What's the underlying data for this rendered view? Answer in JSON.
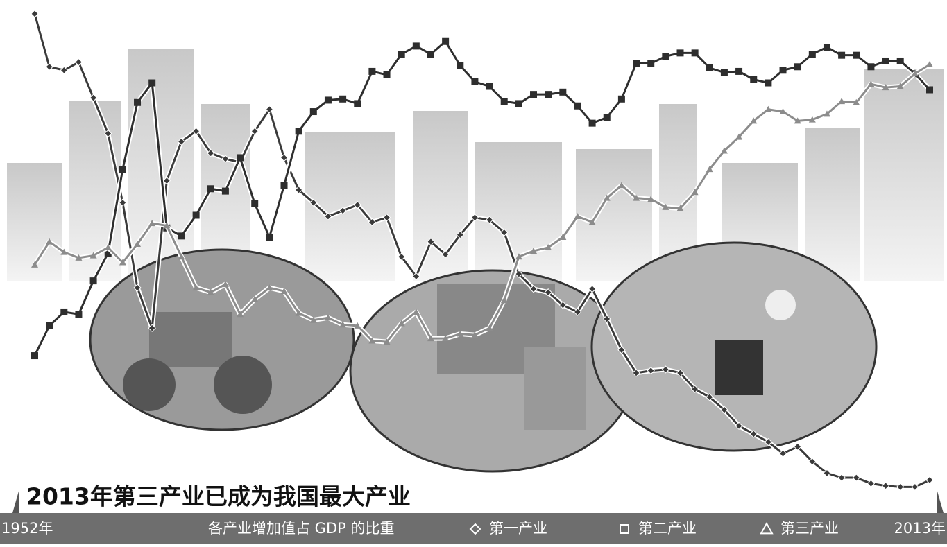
{
  "chart_data": {
    "type": "line",
    "title": "2013年第三产业已成为我国最大产业",
    "subtitle": "各产业增加值占 GDP 的比重",
    "categories": [
      "1952年",
      null,
      null,
      null,
      null,
      null,
      null,
      null,
      null,
      null,
      null,
      null,
      null,
      null,
      null,
      null,
      null,
      null,
      null,
      null,
      null,
      null,
      null,
      null,
      null,
      null,
      null,
      null,
      null,
      null,
      null,
      null,
      null,
      null,
      null,
      null,
      null,
      null,
      null,
      null,
      null,
      null,
      null,
      null,
      null,
      null,
      null,
      null,
      null,
      null,
      null,
      null,
      null,
      null,
      null,
      null,
      null,
      null,
      null,
      null,
      null,
      "2013年"
    ],
    "ylim": [
      4,
      52
    ],
    "series": [
      {
        "name": "第一产业",
        "color": "#3a3a3a",
        "marker": "diamond",
        "values": [
          50.5,
          45.9,
          45.6,
          46.3,
          43.2,
          40.1,
          34.1,
          26.7,
          23.2,
          36.0,
          39.4,
          40.3,
          38.4,
          37.9,
          37.6,
          40.3,
          42.2,
          38.0,
          35.2,
          34.1,
          32.9,
          33.4,
          33.9,
          32.4,
          32.8,
          29.4,
          27.7,
          30.7,
          29.6,
          31.3,
          32.8,
          32.6,
          31.5,
          27.9,
          26.6,
          26.3,
          25.2,
          24.6,
          26.6,
          24.0,
          21.3,
          19.3,
          19.5,
          19.6,
          19.3,
          17.9,
          17.2,
          16.1,
          14.7,
          14.0,
          13.3,
          12.3,
          12.9,
          11.6,
          10.6,
          10.2,
          10.2,
          9.7,
          9.5,
          9.4,
          9.4,
          10.0
        ]
      },
      {
        "name": "第二产业",
        "color": "#2e2e2e",
        "marker": "square",
        "values": [
          20.8,
          23.4,
          24.6,
          24.4,
          27.3,
          29.7,
          37.0,
          42.8,
          44.5,
          31.9,
          31.2,
          33.0,
          35.3,
          35.1,
          38.0,
          34.0,
          31.1,
          35.6,
          40.3,
          42.0,
          43.0,
          43.1,
          42.7,
          45.5,
          45.2,
          47.0,
          47.7,
          47.0,
          48.1,
          46.0,
          44.6,
          44.2,
          42.9,
          42.7,
          43.5,
          43.5,
          43.7,
          42.5,
          41.0,
          41.5,
          43.1,
          46.2,
          46.2,
          46.8,
          47.1,
          47.1,
          45.8,
          45.4,
          45.5,
          44.8,
          44.5,
          45.6,
          45.9,
          47.0,
          47.6,
          46.9,
          46.9,
          45.9,
          46.4,
          46.4,
          45.3,
          43.9
        ]
      },
      {
        "name": "第三产业",
        "color": "#8c8c8c",
        "marker": "triangle",
        "values": [
          28.7,
          30.7,
          29.8,
          29.3,
          29.5,
          30.2,
          28.9,
          30.5,
          32.3,
          32.1,
          29.4,
          26.7,
          26.3,
          27.0,
          24.4,
          25.7,
          26.7,
          26.4,
          24.5,
          23.9,
          24.1,
          23.5,
          23.4,
          22.1,
          22.0,
          23.6,
          24.6,
          22.3,
          22.3,
          22.7,
          22.6,
          23.2,
          25.6,
          29.4,
          29.9,
          30.2,
          31.1,
          32.9,
          32.4,
          34.5,
          35.6,
          34.5,
          34.4,
          33.7,
          33.6,
          35.0,
          37.0,
          38.6,
          39.8,
          41.2,
          42.2,
          42.0,
          41.2,
          41.3,
          41.8,
          42.9,
          42.8,
          44.4,
          44.1,
          44.2,
          45.3,
          46.1
        ]
      }
    ]
  }
}
